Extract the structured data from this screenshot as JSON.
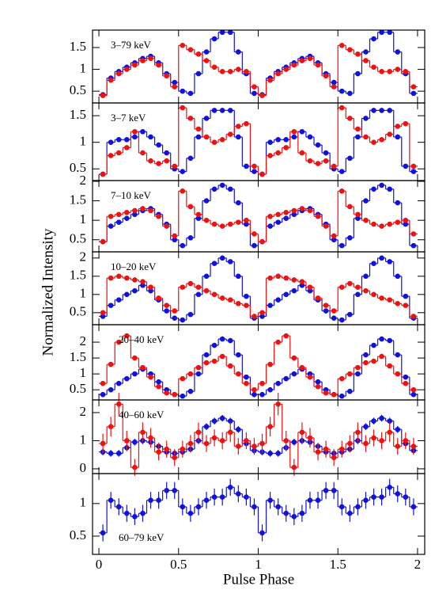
{
  "chart_data": [
    {
      "type": "line",
      "annotation": "3–79 keV",
      "x": [
        0.025,
        0.075,
        0.125,
        0.175,
        0.225,
        0.275,
        0.325,
        0.375,
        0.425,
        0.475,
        0.525,
        0.575,
        0.625,
        0.675,
        0.725,
        0.775,
        0.825,
        0.875,
        0.925,
        0.975,
        1.025,
        1.075,
        1.125,
        1.175,
        1.225,
        1.275,
        1.325,
        1.375,
        1.425,
        1.475,
        1.525,
        1.575,
        1.625,
        1.675,
        1.725,
        1.775,
        1.825,
        1.875,
        1.925,
        1.975
      ],
      "series": [
        {
          "color": "#1111dd",
          "values": [
            0.42,
            0.8,
            0.95,
            1.05,
            1.15,
            1.25,
            1.3,
            1.15,
            0.9,
            0.7,
            0.5,
            0.45,
            0.9,
            1.4,
            1.7,
            1.85,
            1.85,
            1.4,
            0.9,
            0.45,
            0.42,
            0.8,
            0.95,
            1.05,
            1.15,
            1.25,
            1.3,
            1.15,
            0.9,
            0.7,
            0.5,
            0.45,
            0.9,
            1.4,
            1.7,
            1.85,
            1.85,
            1.4,
            0.9,
            0.45
          ]
        },
        {
          "color": "#ee1111",
          "values": [
            0.4,
            0.75,
            0.9,
            1.0,
            1.1,
            1.2,
            1.25,
            1.1,
            0.85,
            0.6,
            1.55,
            1.45,
            1.35,
            1.2,
            1.05,
            0.95,
            0.95,
            1.0,
            0.95,
            0.6,
            0.4,
            0.75,
            0.9,
            1.0,
            1.1,
            1.2,
            1.25,
            1.1,
            0.85,
            0.6,
            1.55,
            1.45,
            1.35,
            1.2,
            1.05,
            0.95,
            0.95,
            1.0,
            0.95,
            0.6
          ]
        }
      ],
      "xlim": [
        -0.04,
        2.045
      ],
      "ylim": [
        0.23,
        1.9
      ],
      "yticks": [
        0.5,
        1,
        1.5
      ]
    },
    {
      "type": "line",
      "annotation": "3–7 keV",
      "x": [
        0.025,
        0.075,
        0.125,
        0.175,
        0.225,
        0.275,
        0.325,
        0.375,
        0.425,
        0.475,
        0.525,
        0.575,
        0.625,
        0.675,
        0.725,
        0.775,
        0.825,
        0.875,
        0.925,
        0.975,
        1.025,
        1.075,
        1.125,
        1.175,
        1.225,
        1.275,
        1.325,
        1.375,
        1.425,
        1.475,
        1.525,
        1.575,
        1.625,
        1.675,
        1.725,
        1.775,
        1.825,
        1.875,
        1.925,
        1.975
      ],
      "series": [
        {
          "color": "#1111dd",
          "values": [
            0.4,
            1.0,
            1.05,
            1.05,
            1.1,
            1.2,
            1.1,
            0.95,
            0.8,
            0.5,
            0.45,
            0.7,
            1.1,
            1.45,
            1.6,
            1.6,
            1.6,
            1.1,
            0.55,
            0.45,
            0.4,
            1.0,
            1.05,
            1.05,
            1.1,
            1.2,
            1.1,
            0.95,
            0.8,
            0.5,
            0.45,
            0.7,
            1.1,
            1.45,
            1.6,
            1.6,
            1.6,
            1.1,
            0.55,
            0.45
          ]
        },
        {
          "color": "#ee1111",
          "values": [
            0.4,
            0.75,
            0.8,
            0.9,
            1.2,
            0.8,
            0.65,
            0.6,
            0.65,
            0.55,
            1.65,
            1.45,
            1.25,
            1.1,
            1.0,
            1.05,
            1.15,
            1.3,
            1.35,
            0.55,
            0.4,
            0.75,
            0.8,
            0.9,
            1.2,
            0.8,
            0.65,
            0.6,
            0.65,
            0.55,
            1.65,
            1.45,
            1.25,
            1.1,
            1.0,
            1.05,
            1.15,
            1.3,
            1.35,
            0.55
          ]
        }
      ],
      "xlim": [
        -0.04,
        2.045
      ],
      "ylim": [
        0.28,
        1.74
      ],
      "yticks": [
        0.5,
        1,
        1.5
      ]
    },
    {
      "type": "line",
      "annotation": "7–10 keV",
      "x": [
        0.025,
        0.075,
        0.125,
        0.175,
        0.225,
        0.275,
        0.325,
        0.375,
        0.425,
        0.475,
        0.525,
        0.575,
        0.625,
        0.675,
        0.725,
        0.775,
        0.825,
        0.875,
        0.925,
        0.975,
        1.025,
        1.075,
        1.125,
        1.175,
        1.225,
        1.275,
        1.325,
        1.375,
        1.425,
        1.475,
        1.525,
        1.575,
        1.625,
        1.675,
        1.725,
        1.775,
        1.825,
        1.875,
        1.925,
        1.975
      ],
      "series": [
        {
          "color": "#1111dd",
          "values": [
            0.45,
            0.85,
            0.95,
            1.05,
            1.15,
            1.25,
            1.3,
            1.15,
            0.9,
            0.5,
            0.35,
            0.55,
            1.05,
            1.5,
            1.8,
            1.9,
            1.8,
            1.45,
            0.9,
            0.35,
            0.45,
            0.85,
            0.95,
            1.05,
            1.15,
            1.25,
            1.3,
            1.15,
            0.9,
            0.5,
            0.35,
            0.55,
            1.05,
            1.5,
            1.8,
            1.9,
            1.8,
            1.45,
            0.9,
            0.35
          ]
        },
        {
          "color": "#ee1111",
          "values": [
            0.45,
            1.1,
            1.15,
            1.2,
            1.25,
            1.3,
            1.25,
            1.1,
            0.85,
            0.6,
            1.75,
            1.35,
            1.15,
            1.0,
            0.9,
            0.85,
            0.9,
            0.95,
            1.0,
            0.65,
            0.45,
            1.1,
            1.15,
            1.2,
            1.25,
            1.3,
            1.25,
            1.1,
            0.85,
            0.6,
            1.75,
            1.35,
            1.15,
            1.0,
            0.9,
            0.85,
            0.9,
            0.95,
            1.0,
            0.65
          ]
        }
      ],
      "xlim": [
        -0.04,
        2.045
      ],
      "ylim": [
        0.19,
        2.02
      ],
      "yticks": [
        0.5,
        1,
        1.5,
        2
      ]
    },
    {
      "type": "line",
      "annotation": "10–20 keV",
      "ylabel": "Normalized Intensity",
      "x": [
        0.025,
        0.075,
        0.125,
        0.175,
        0.225,
        0.275,
        0.325,
        0.375,
        0.425,
        0.475,
        0.525,
        0.575,
        0.625,
        0.675,
        0.725,
        0.775,
        0.825,
        0.875,
        0.925,
        0.975,
        1.025,
        1.075,
        1.125,
        1.175,
        1.225,
        1.275,
        1.325,
        1.375,
        1.425,
        1.475,
        1.525,
        1.575,
        1.625,
        1.675,
        1.725,
        1.775,
        1.825,
        1.875,
        1.925,
        1.975
      ],
      "series": [
        {
          "color": "#1111dd",
          "values": [
            0.4,
            0.7,
            0.85,
            1.0,
            1.1,
            1.25,
            1.1,
            0.85,
            0.55,
            0.35,
            0.3,
            0.45,
            1.0,
            1.5,
            1.85,
            2.0,
            1.9,
            1.5,
            0.95,
            0.35,
            0.4,
            0.7,
            0.85,
            1.0,
            1.1,
            1.25,
            1.1,
            0.85,
            0.55,
            0.35,
            0.3,
            0.45,
            1.0,
            1.5,
            1.85,
            2.0,
            1.9,
            1.5,
            0.95,
            0.35
          ]
        },
        {
          "color": "#ee1111",
          "values": [
            0.5,
            1.45,
            1.5,
            1.45,
            1.4,
            1.35,
            1.2,
            0.9,
            0.7,
            0.55,
            1.2,
            1.3,
            1.2,
            1.1,
            1.0,
            0.9,
            0.85,
            0.75,
            0.7,
            0.4,
            0.5,
            1.45,
            1.5,
            1.45,
            1.4,
            1.35,
            1.2,
            0.9,
            0.7,
            0.55,
            1.2,
            1.3,
            1.2,
            1.1,
            1.0,
            0.9,
            0.85,
            0.75,
            0.7,
            0.4
          ]
        }
      ],
      "xlim": [
        -0.04,
        2.045
      ],
      "ylim": [
        0.17,
        2.17
      ],
      "yticks": [
        0.5,
        1,
        1.5,
        2
      ]
    },
    {
      "type": "line",
      "annotation": "20–40 keV",
      "x": [
        0.025,
        0.075,
        0.125,
        0.175,
        0.225,
        0.275,
        0.325,
        0.375,
        0.425,
        0.475,
        0.525,
        0.575,
        0.625,
        0.675,
        0.725,
        0.775,
        0.825,
        0.875,
        0.925,
        0.975,
        1.025,
        1.075,
        1.125,
        1.175,
        1.225,
        1.275,
        1.325,
        1.375,
        1.425,
        1.475,
        1.525,
        1.575,
        1.625,
        1.675,
        1.725,
        1.775,
        1.825,
        1.875,
        1.925,
        1.975
      ],
      "series": [
        {
          "color": "#1111dd",
          "values": [
            0.35,
            0.5,
            0.7,
            0.85,
            1.0,
            1.15,
            1.0,
            0.75,
            0.5,
            0.35,
            0.3,
            0.45,
            1.0,
            1.6,
            1.9,
            2.1,
            2.05,
            1.6,
            0.9,
            0.35,
            0.35,
            0.5,
            0.7,
            0.85,
            1.0,
            1.15,
            1.0,
            0.75,
            0.5,
            0.35,
            0.3,
            0.45,
            1.0,
            1.6,
            1.9,
            2.1,
            2.05,
            1.6,
            0.9,
            0.35
          ]
        },
        {
          "color": "#ee1111",
          "values": [
            0.7,
            1.3,
            2.0,
            2.2,
            1.5,
            1.2,
            0.9,
            0.6,
            0.4,
            0.35,
            0.85,
            1.0,
            1.2,
            1.35,
            1.4,
            1.55,
            1.25,
            1.0,
            0.7,
            0.5,
            0.7,
            1.3,
            2.0,
            2.2,
            1.5,
            1.2,
            0.9,
            0.6,
            0.4,
            0.35,
            0.85,
            1.0,
            1.2,
            1.35,
            1.4,
            1.55,
            1.25,
            1.0,
            0.7,
            0.5
          ]
        }
      ],
      "xlim": [
        -0.04,
        2.045
      ],
      "ylim": [
        0.18,
        2.55
      ],
      "yticks": [
        0.5,
        1,
        1.5,
        2
      ]
    },
    {
      "type": "line",
      "annotation": "40–60 keV",
      "x": [
        0.025,
        0.075,
        0.125,
        0.175,
        0.225,
        0.275,
        0.325,
        0.375,
        0.425,
        0.475,
        0.525,
        0.575,
        0.625,
        0.675,
        0.725,
        0.775,
        0.825,
        0.875,
        0.925,
        0.975,
        1.025,
        1.075,
        1.125,
        1.175,
        1.225,
        1.275,
        1.325,
        1.375,
        1.425,
        1.475,
        1.525,
        1.575,
        1.625,
        1.675,
        1.725,
        1.775,
        1.825,
        1.875,
        1.925,
        1.975
      ],
      "series": [
        {
          "color": "#1111dd",
          "values": [
            0.6,
            0.55,
            0.55,
            0.75,
            0.95,
            1.0,
            0.95,
            0.8,
            0.6,
            0.55,
            0.6,
            0.7,
            1.0,
            1.5,
            1.7,
            1.8,
            1.7,
            1.4,
            0.9,
            0.65,
            0.6,
            0.55,
            0.55,
            0.75,
            0.95,
            1.0,
            0.95,
            0.8,
            0.6,
            0.55,
            0.6,
            0.7,
            1.0,
            1.5,
            1.7,
            1.8,
            1.7,
            1.4,
            0.9,
            0.65
          ],
          "errors": [
            0.12,
            0.12,
            0.12,
            0.12,
            0.12,
            0.12,
            0.12,
            0.12,
            0.12,
            0.12,
            0.12,
            0.12,
            0.12,
            0.12,
            0.12,
            0.12,
            0.12,
            0.12,
            0.12,
            0.12,
            0.12,
            0.12,
            0.12,
            0.12,
            0.12,
            0.12,
            0.12,
            0.12,
            0.12,
            0.12,
            0.12,
            0.12,
            0.12,
            0.12,
            0.12,
            0.12,
            0.12,
            0.12,
            0.12,
            0.12
          ]
        },
        {
          "color": "#ee1111",
          "values": [
            0.9,
            1.5,
            2.3,
            1.0,
            0.05,
            1.3,
            1.1,
            0.6,
            0.7,
            0.4,
            0.7,
            0.9,
            1.3,
            0.9,
            1.1,
            1.0,
            1.3,
            0.8,
            1.0,
            0.8,
            0.9,
            1.5,
            2.3,
            1.0,
            0.05,
            1.3,
            1.1,
            0.6,
            0.7,
            0.4,
            0.7,
            0.9,
            1.3,
            0.9,
            1.1,
            1.0,
            1.3,
            0.8,
            1.0,
            0.8
          ],
          "errors": [
            0.35,
            0.35,
            0.4,
            0.35,
            0.3,
            0.35,
            0.35,
            0.3,
            0.3,
            0.3,
            0.3,
            0.3,
            0.35,
            0.3,
            0.3,
            0.3,
            0.35,
            0.3,
            0.3,
            0.3,
            0.35,
            0.35,
            0.4,
            0.35,
            0.3,
            0.35,
            0.35,
            0.3,
            0.3,
            0.3,
            0.3,
            0.3,
            0.35,
            0.3,
            0.3,
            0.3,
            0.35,
            0.3,
            0.3,
            0.3
          ]
        }
      ],
      "xlim": [
        -0.04,
        2.045
      ],
      "ylim": [
        -0.17,
        2.45
      ],
      "yticks": [
        0,
        1,
        2
      ]
    },
    {
      "type": "line",
      "annotation": "60–79 keV",
      "xlabel": "Pulse Phase",
      "x": [
        0.025,
        0.075,
        0.125,
        0.175,
        0.225,
        0.275,
        0.325,
        0.375,
        0.425,
        0.475,
        0.525,
        0.575,
        0.625,
        0.675,
        0.725,
        0.775,
        0.825,
        0.875,
        0.925,
        0.975,
        1.025,
        1.075,
        1.125,
        1.175,
        1.225,
        1.275,
        1.325,
        1.375,
        1.425,
        1.475,
        1.525,
        1.575,
        1.625,
        1.675,
        1.725,
        1.775,
        1.825,
        1.875,
        1.925,
        1.975
      ],
      "series": [
        {
          "color": "#1111dd",
          "values": [
            0.55,
            1.05,
            0.95,
            0.85,
            0.8,
            0.85,
            1.05,
            1.05,
            1.2,
            1.2,
            0.95,
            0.85,
            0.95,
            1.05,
            1.1,
            1.1,
            1.25,
            1.15,
            1.1,
            0.95,
            0.55,
            1.05,
            0.95,
            0.85,
            0.8,
            0.85,
            1.05,
            1.05,
            1.2,
            1.2,
            0.95,
            0.85,
            0.95,
            1.05,
            1.1,
            1.1,
            1.25,
            1.15,
            1.1,
            0.95
          ],
          "errors": [
            0.13,
            0.13,
            0.13,
            0.13,
            0.13,
            0.13,
            0.13,
            0.13,
            0.13,
            0.13,
            0.13,
            0.13,
            0.13,
            0.13,
            0.13,
            0.13,
            0.13,
            0.13,
            0.13,
            0.13,
            0.13,
            0.13,
            0.13,
            0.13,
            0.13,
            0.13,
            0.13,
            0.13,
            0.13,
            0.13,
            0.13,
            0.13,
            0.13,
            0.13,
            0.13,
            0.13,
            0.13,
            0.13,
            0.13,
            0.13
          ]
        }
      ],
      "xlim": [
        -0.04,
        2.045
      ],
      "ylim": [
        0.22,
        1.46
      ],
      "yticks": [
        0.5,
        1
      ],
      "xticks": [
        0,
        0.5,
        1,
        1.5,
        2
      ]
    }
  ]
}
